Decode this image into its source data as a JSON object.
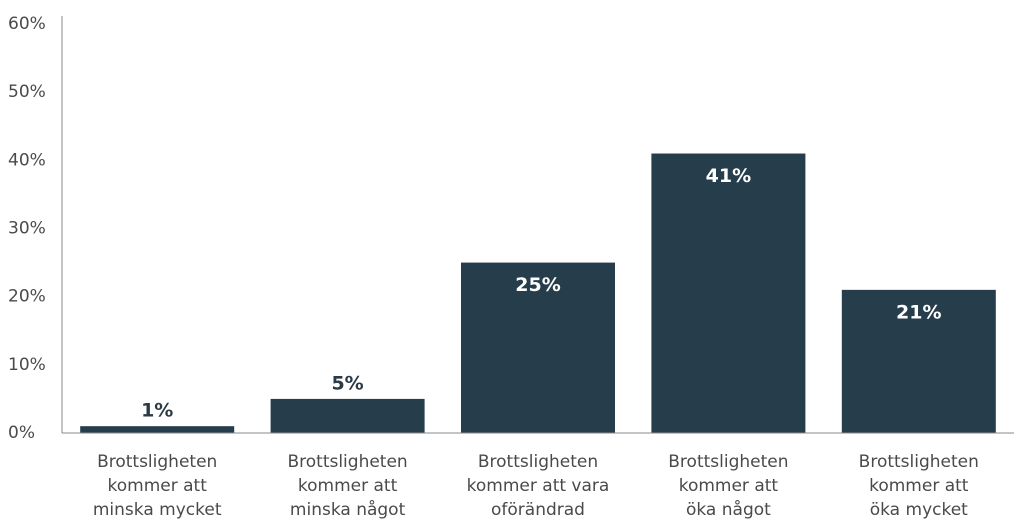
{
  "chart_data": {
    "type": "bar",
    "categories": [
      "Brottsligheten\nkommer att\nminska mycket",
      "Brottsligheten\nkommer att\nminska något",
      "Brottsligheten\nkommer att vara\noförändrad",
      "Brottsligheten\nkommer att\nöka något",
      "Brottsligheten\nkommer att\nöka mycket"
    ],
    "values": [
      1,
      5,
      25,
      41,
      21
    ],
    "value_labels": [
      "1%",
      "5%",
      "25%",
      "41%",
      "21%"
    ],
    "color": "#263d4c",
    "ylim": [
      0,
      60
    ],
    "yticks": [
      {
        "value": 0,
        "label": "0%"
      },
      {
        "value": 10,
        "label": "10%"
      },
      {
        "value": 20,
        "label": "20%"
      },
      {
        "value": 30,
        "label": "30%"
      },
      {
        "value": 40,
        "label": "40%"
      },
      {
        "value": 50,
        "label": "50%"
      },
      {
        "value": 60,
        "label": "60%"
      }
    ],
    "grid": false
  }
}
